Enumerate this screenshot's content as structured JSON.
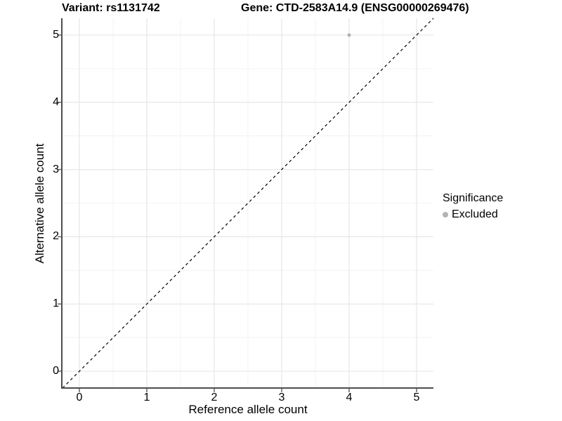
{
  "titles": {
    "variant": "Variant: rs1131742",
    "gene": "Gene: CTD-2583A14.9 (ENSG00000269476)"
  },
  "axes": {
    "x_label": "Reference allele count",
    "y_label": "Alternative allele count"
  },
  "legend": {
    "title": "Significance",
    "entries": [
      {
        "label": "Excluded",
        "color": "#b3b3b3"
      }
    ]
  },
  "chart_data": {
    "type": "scatter",
    "title_left": "Variant: rs1131742",
    "title_right": "Gene: CTD-2583A14.9 (ENSG00000269476)",
    "xlabel": "Reference allele count",
    "ylabel": "Alternative allele count",
    "xlim": [
      -0.25,
      5.25
    ],
    "ylim": [
      -0.25,
      5.25
    ],
    "xticks": [
      0,
      1,
      2,
      3,
      4,
      5
    ],
    "yticks": [
      0,
      1,
      2,
      3,
      4,
      5
    ],
    "minor_grid_step": 0.5,
    "grid": "on",
    "legend_position": "right",
    "series": [
      {
        "name": "Excluded",
        "color": "#b3b3b3",
        "points": [
          {
            "x": 4,
            "y": 5
          }
        ]
      }
    ],
    "reference_line": {
      "kind": "identity y=x",
      "from": [
        -0.25,
        -0.25
      ],
      "to": [
        5.25,
        5.25
      ],
      "style": "dashed",
      "color": "#000000"
    }
  },
  "style": {
    "axis_color": "#4d4d4d",
    "tick_color": "#666666",
    "grid_major_color": "#e7e7e7",
    "grid_minor_color": "#f3f3f3",
    "point_color": "#b3b3b3",
    "point_radius": 2.5,
    "legend_dot_radius": 4
  }
}
